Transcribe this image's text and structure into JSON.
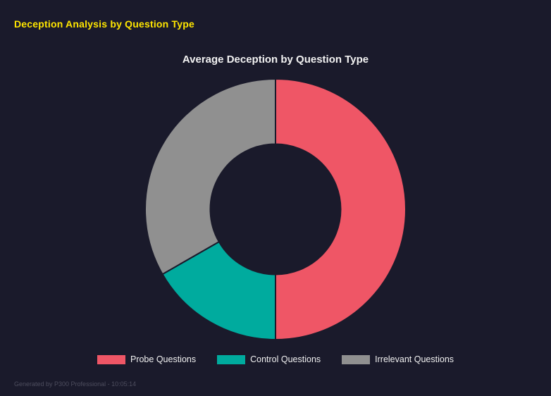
{
  "page": {
    "title": "Deception Analysis by Question Type",
    "footer": "Generated by P300 Professional - 10:05:14"
  },
  "colors": {
    "background": "#1a1a2b",
    "page_title": "#ffe600",
    "chart_title": "#f2f2f2"
  },
  "chart_data": {
    "type": "pie",
    "subtype": "donut",
    "title": "Average Deception by Question Type",
    "categories": [
      "Probe Questions",
      "Control Questions",
      "Irrelevant Questions"
    ],
    "values": [
      50,
      16.7,
      33.3
    ],
    "unit": "percent_of_total",
    "colors": [
      "#ef5666",
      "#00ab9e",
      "#909090"
    ],
    "legend_position": "bottom",
    "start_angle_deg": 0,
    "direction": "clockwise",
    "inner_radius_ratio": 0.5,
    "grid": false
  }
}
